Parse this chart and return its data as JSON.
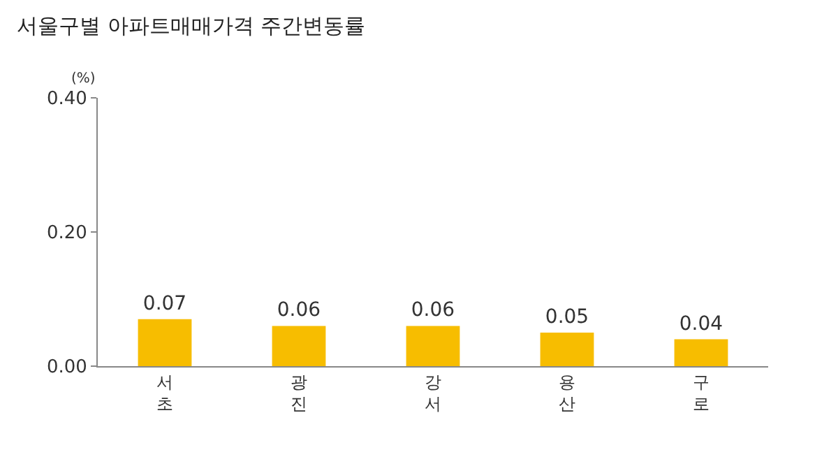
{
  "chart_data": {
    "type": "bar",
    "title": "서울구별 아파트매매가격 주간변동률",
    "ylabel": "(%)",
    "categories": [
      "서초",
      "광진",
      "강서",
      "용산",
      "구로"
    ],
    "values": [
      0.07,
      0.06,
      0.06,
      0.05,
      0.04
    ],
    "color": "#f7bd00",
    "ylim": [
      0,
      0.4
    ],
    "yticks": [
      {
        "value": 0,
        "label": "0.00"
      },
      {
        "value": 0.2,
        "label": "0.20"
      },
      {
        "value": 0.4,
        "label": "0.40"
      }
    ],
    "data_labels": true,
    "grid": false,
    "legend": false
  }
}
